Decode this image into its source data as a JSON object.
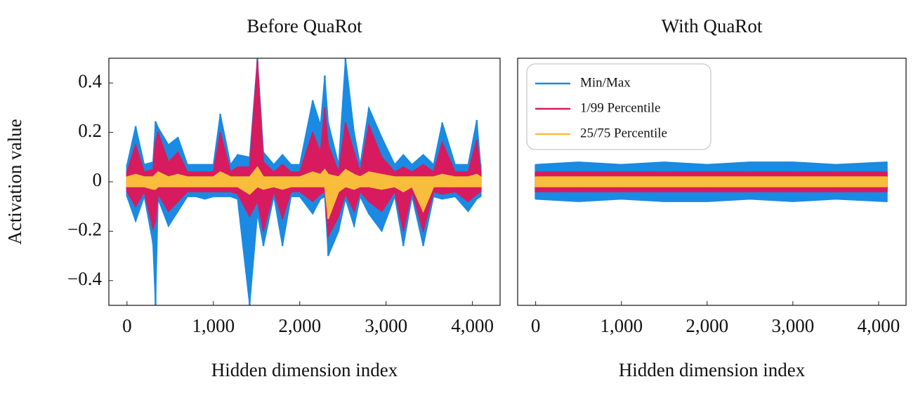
{
  "chart_data": [
    {
      "type": "line",
      "title": "Before QuaRot",
      "xlabel": "Hidden dimension index",
      "ylabel": "Activation value",
      "xlim": [
        -210,
        4320
      ],
      "ylim": [
        -0.5,
        0.5
      ],
      "xticks": [
        0,
        {
          "value": 1000,
          "label": "1,000"
        },
        {
          "value": 2000,
          "label": "2,000"
        },
        {
          "value": 3000,
          "label": "3,000"
        },
        {
          "value": 4000,
          "label": "4,000"
        }
      ],
      "yticks": [
        {
          "value": -0.4,
          "label": "−0.4"
        },
        {
          "value": -0.2,
          "label": "−0.2"
        },
        0,
        0.2,
        0.4
      ],
      "x": [
        0,
        100,
        200,
        300,
        330,
        360,
        480,
        590,
        700,
        800,
        900,
        1000,
        1080,
        1200,
        1280,
        1420,
        1510,
        1580,
        1700,
        1800,
        1900,
        2000,
        2150,
        2240,
        2290,
        2330,
        2450,
        2530,
        2630,
        2700,
        2800,
        2950,
        3100,
        3200,
        3300,
        3430,
        3550,
        3650,
        3800,
        3950,
        4050,
        4095
      ],
      "series": [
        {
          "color": "#1a8ae3",
          "upper": [
            0.07,
            0.225,
            0.07,
            0.08,
            0.245,
            0.22,
            0.15,
            0.18,
            0.07,
            0.07,
            0.07,
            0.07,
            0.275,
            0.07,
            0.11,
            0.1,
            0.5,
            0.12,
            0.07,
            0.11,
            0.07,
            0.07,
            0.33,
            0.23,
            0.43,
            0.24,
            0.07,
            0.5,
            0.2,
            0.07,
            0.3,
            0.18,
            0.07,
            0.11,
            0.07,
            0.11,
            0.07,
            0.24,
            0.07,
            0.07,
            0.25,
            0.07
          ],
          "lower": [
            -0.06,
            -0.16,
            -0.06,
            -0.25,
            -0.5,
            -0.07,
            -0.18,
            -0.12,
            -0.06,
            -0.06,
            -0.07,
            -0.06,
            -0.06,
            -0.06,
            -0.07,
            -0.5,
            -0.13,
            -0.26,
            -0.06,
            -0.26,
            -0.06,
            -0.06,
            -0.13,
            -0.07,
            -0.06,
            -0.3,
            -0.2,
            -0.07,
            -0.18,
            -0.06,
            -0.13,
            -0.2,
            -0.06,
            -0.26,
            -0.06,
            -0.26,
            -0.06,
            -0.07,
            -0.06,
            -0.12,
            -0.07,
            -0.06
          ]
        },
        {
          "color": "#d81b5f",
          "upper": [
            0.04,
            0.15,
            0.04,
            0.05,
            0.16,
            0.2,
            0.08,
            0.12,
            0.04,
            0.04,
            0.04,
            0.04,
            0.2,
            0.04,
            0.06,
            0.06,
            0.49,
            0.08,
            0.04,
            0.07,
            0.04,
            0.04,
            0.2,
            0.12,
            0.3,
            0.15,
            0.04,
            0.24,
            0.12,
            0.04,
            0.23,
            0.1,
            0.04,
            0.06,
            0.04,
            0.07,
            0.04,
            0.16,
            0.04,
            0.04,
            0.17,
            0.04
          ],
          "lower": [
            -0.04,
            -0.1,
            -0.04,
            -0.19,
            -0.16,
            -0.05,
            -0.12,
            -0.08,
            -0.04,
            -0.04,
            -0.04,
            -0.04,
            -0.04,
            -0.04,
            -0.05,
            -0.14,
            -0.08,
            -0.2,
            -0.04,
            -0.15,
            -0.04,
            -0.04,
            -0.08,
            -0.05,
            -0.04,
            -0.22,
            -0.14,
            -0.05,
            -0.12,
            -0.04,
            -0.08,
            -0.12,
            -0.04,
            -0.2,
            -0.04,
            -0.2,
            -0.04,
            -0.05,
            -0.04,
            -0.08,
            -0.05,
            -0.04
          ]
        },
        {
          "color": "#f9bd3c",
          "upper": [
            0.02,
            0.03,
            0.02,
            0.02,
            0.03,
            0.04,
            0.02,
            0.03,
            0.02,
            0.02,
            0.02,
            0.02,
            0.04,
            0.02,
            0.02,
            0.02,
            0.06,
            0.02,
            0.02,
            0.02,
            0.02,
            0.02,
            0.04,
            0.03,
            0.05,
            0.03,
            0.02,
            0.05,
            0.03,
            0.02,
            0.04,
            0.03,
            0.02,
            0.02,
            0.02,
            0.02,
            0.02,
            0.03,
            0.02,
            0.02,
            0.03,
            0.02
          ],
          "lower": [
            -0.02,
            -0.02,
            -0.02,
            -0.03,
            -0.03,
            -0.02,
            -0.02,
            -0.02,
            -0.02,
            -0.02,
            -0.02,
            -0.02,
            -0.02,
            -0.02,
            -0.02,
            -0.05,
            -0.02,
            -0.03,
            -0.02,
            -0.03,
            -0.02,
            -0.02,
            -0.02,
            -0.02,
            -0.02,
            -0.15,
            -0.04,
            -0.02,
            -0.03,
            -0.02,
            -0.02,
            -0.03,
            -0.02,
            -0.04,
            -0.02,
            -0.12,
            -0.02,
            -0.02,
            -0.02,
            -0.02,
            -0.02,
            -0.02
          ]
        }
      ]
    },
    {
      "type": "line",
      "title": "With QuaRot",
      "xlabel": "Hidden dimension index",
      "xlim": [
        -210,
        4320
      ],
      "ylim": [
        -0.5,
        0.5
      ],
      "xticks": [
        0,
        {
          "value": 1000,
          "label": "1,000"
        },
        {
          "value": 2000,
          "label": "2,000"
        },
        {
          "value": 3000,
          "label": "3,000"
        },
        {
          "value": 4000,
          "label": "4,000"
        }
      ],
      "legend": "upper left",
      "x": [
        0,
        500,
        1000,
        1500,
        2000,
        2500,
        3000,
        3500,
        4095
      ],
      "series": [
        {
          "name": "Min/Max",
          "color": "#1a8ae3",
          "upper": [
            0.07,
            0.08,
            0.07,
            0.08,
            0.07,
            0.08,
            0.08,
            0.07,
            0.08
          ],
          "lower": [
            -0.07,
            -0.08,
            -0.07,
            -0.08,
            -0.08,
            -0.07,
            -0.08,
            -0.07,
            -0.08
          ]
        },
        {
          "name": "1/99 Percentile",
          "color": "#d81b5f",
          "upper": [
            0.04,
            0.04,
            0.04,
            0.04,
            0.04,
            0.04,
            0.04,
            0.04,
            0.04
          ],
          "lower": [
            -0.04,
            -0.04,
            -0.04,
            -0.04,
            -0.04,
            -0.04,
            -0.04,
            -0.04,
            -0.04
          ]
        },
        {
          "name": "25/75 Percentile",
          "color": "#f9bd3c",
          "upper": [
            0.02,
            0.02,
            0.02,
            0.02,
            0.02,
            0.02,
            0.02,
            0.02,
            0.02
          ],
          "lower": [
            -0.02,
            -0.02,
            -0.02,
            -0.02,
            -0.02,
            -0.02,
            -0.02,
            -0.02,
            -0.02
          ]
        }
      ]
    }
  ]
}
